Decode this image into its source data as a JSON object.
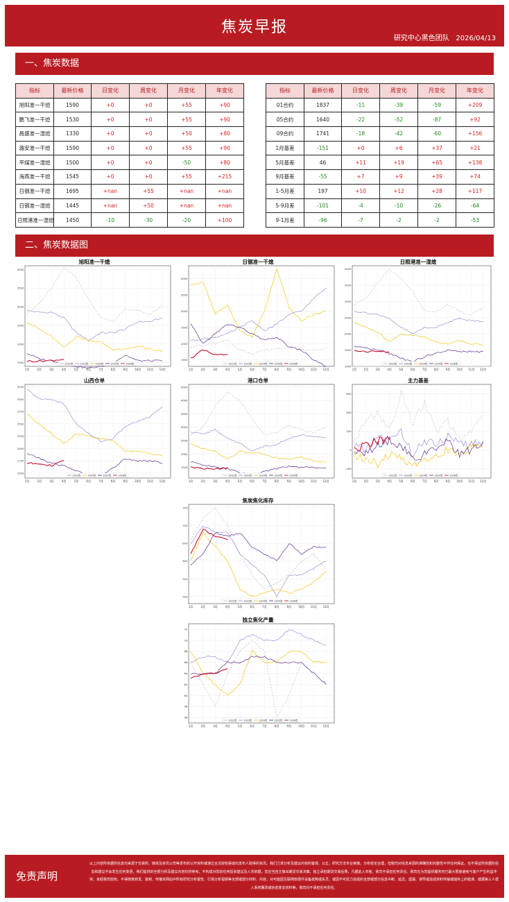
{
  "header": {
    "title": "焦炭早报",
    "team": "研究中心黑色团队",
    "date": "2026/04/13"
  },
  "section1": {
    "title": "一、焦炭数据"
  },
  "section2": {
    "title": "二、焦炭数据图"
  },
  "table_left": {
    "headers": [
      "指标",
      "最新价格",
      "日变化",
      "周变化",
      "月变化",
      "年变化"
    ],
    "rows": [
      [
        "旭阳准一干熄",
        "1590",
        "+0",
        "+0",
        "+55",
        "+90"
      ],
      [
        "鹏飞准一干熄",
        "1530",
        "+0",
        "+0",
        "+55",
        "+90"
      ],
      [
        "昌盛准一湿熄",
        "1330",
        "+0",
        "+0",
        "+50",
        "+80"
      ],
      [
        "潞安准一干熄",
        "1590",
        "+0",
        "+0",
        "+55",
        "+90"
      ],
      [
        "平煤准一湿熄",
        "1500",
        "+0",
        "+0",
        "-50",
        "+80"
      ],
      [
        "海燕准一干熄",
        "1545",
        "+0",
        "+0",
        "+55",
        "+215"
      ],
      [
        "日钢准一干熄",
        "1695",
        "+nan",
        "+55",
        "+nan",
        "+nan"
      ],
      [
        "日钢准一湿熄",
        "1445",
        "+nan",
        "+50",
        "+nan",
        "+nan"
      ],
      [
        "日照港准一湿熄",
        "1450",
        "-10",
        "-30",
        "-20",
        "+100"
      ]
    ]
  },
  "table_right": {
    "headers": [
      "指标",
      "最新价格",
      "日变化",
      "周变化",
      "月变化",
      "年变化"
    ],
    "rows": [
      [
        "01合约",
        "1837",
        "-11",
        "-39",
        "-59",
        "+209"
      ],
      [
        "05合约",
        "1640",
        "-22",
        "-52",
        "-87",
        "+92"
      ],
      [
        "09合约",
        "1741",
        "-18",
        "-42",
        "-60",
        "+156"
      ],
      [
        "1月基差",
        "-151",
        "+0",
        "+6",
        "+37",
        "+21"
      ],
      [
        "5月基差",
        "46",
        "+11",
        "+19",
        "+65",
        "+138"
      ],
      [
        "9月基差",
        "-55",
        "+7",
        "+9",
        "+39",
        "+74"
      ],
      [
        "1-5月差",
        "197",
        "+10",
        "+12",
        "+28",
        "+117"
      ],
      [
        "5-9月差",
        "-101",
        "-4",
        "-10",
        "-26",
        "-64"
      ],
      [
        "9-1月差",
        "-96",
        "-7",
        "-2",
        "-2",
        "-53"
      ]
    ]
  },
  "colors": {
    "brand": "#b81c22",
    "y2022": "#bdbdbd",
    "y2023": "#9b8fd6",
    "y2024": "#f5c518",
    "y2025": "#5b2d90",
    "y2026": "#c8102e"
  },
  "months": [
    "1月",
    "2月",
    "3月",
    "4月",
    "5月",
    "6月",
    "7月",
    "8月",
    "9月",
    "10月",
    "11月",
    "12月"
  ],
  "legend": [
    "2022年",
    "2023年",
    "2024年",
    "2025年",
    "2026年"
  ],
  "chart_data": [
    {
      "type": "line",
      "title": "旭阳准一干熄",
      "yticks": [
        1500,
        2000,
        2500,
        3000,
        3500,
        4000
      ],
      "ylim": [
        1400,
        4100
      ],
      "series": [
        {
          "name": "2022年",
          "values": [
            2800,
            3100,
            3500,
            4050,
            3800,
            3200,
            2700,
            2600,
            2950,
            2900,
            2800,
            3050
          ]
        },
        {
          "name": "2023年",
          "values": [
            2900,
            2850,
            2850,
            2700,
            2300,
            2100,
            2300,
            2300,
            2400,
            2600,
            2600,
            2700
          ]
        },
        {
          "name": "2024年",
          "values": [
            2600,
            2400,
            2200,
            1900,
            2200,
            2100,
            2050,
            1850,
            1850,
            1950,
            1850,
            1800
          ]
        },
        {
          "name": "2025年",
          "values": [
            1750,
            1600,
            1550,
            1500,
            1400,
            1350,
            1400,
            1500,
            1700,
            1550,
            1550,
            1550
          ]
        },
        {
          "name": "2026年",
          "values": [
            1540,
            1540,
            1560,
            1590
          ]
        }
      ]
    },
    {
      "type": "line",
      "title": "日钢准一干熄",
      "yticks": [
        1500,
        2000,
        2500,
        3000,
        3500,
        4000
      ],
      "ylim": [
        1300,
        4400
      ],
      "series": [
        {
          "name": "2022年",
          "values": [
            1900,
            1950,
            2000,
            2100,
            1800,
            1700,
            1800,
            1850,
            1900,
            1800,
            1800,
            1850
          ]
        },
        {
          "name": "2023年",
          "values": [
            2100,
            2150,
            2200,
            2300,
            2500,
            2700,
            2400,
            2600,
            2900,
            3000,
            3400,
            3700
          ]
        },
        {
          "name": "2024年",
          "values": [
            3800,
            3900,
            2900,
            3200,
            2400,
            2200,
            3000,
            4300,
            3100,
            2700,
            2900,
            3000
          ]
        },
        {
          "name": "2025年",
          "values": [
            2600,
            2000,
            2300,
            2600,
            2500,
            2300,
            2100,
            2200,
            1900,
            1800,
            1500,
            1300
          ]
        },
        {
          "name": "2026年",
          "values": [
            1550,
            1800,
            1650,
            1650
          ]
        }
      ]
    },
    {
      "type": "line",
      "title": "日照港准一湿熄",
      "yticks": [
        1000,
        1500,
        2000,
        2500,
        3000,
        3500,
        4000
      ],
      "ylim": [
        1000,
        4100
      ],
      "series": [
        {
          "name": "2022年",
          "values": [
            2900,
            3100,
            3600,
            4000,
            3700,
            3300,
            2700,
            2700,
            2900,
            2700,
            2600,
            2800
          ]
        },
        {
          "name": "2023年",
          "values": [
            2700,
            2650,
            2600,
            2450,
            2200,
            2000,
            2200,
            2200,
            2350,
            2500,
            2400,
            2400
          ]
        },
        {
          "name": "2024年",
          "values": [
            2350,
            2200,
            2050,
            1750,
            2000,
            1950,
            1900,
            1750,
            1700,
            1800,
            1700,
            1650
          ]
        },
        {
          "name": "2025年",
          "values": [
            1600,
            1550,
            1500,
            1400,
            1250,
            1150,
            1300,
            1400,
            1500,
            1450,
            1450,
            1450
          ]
        },
        {
          "name": "2026年",
          "values": [
            1480,
            1460,
            1460,
            1450
          ]
        }
      ]
    },
    {
      "type": "line",
      "title": "山西仓单",
      "yticks": [
        1500,
        1750,
        2000,
        2250,
        2500,
        2750,
        3000,
        3250
      ],
      "ylim": [
        1400,
        3300
      ],
      "series": [
        {
          "name": "2023年",
          "values": [
            3200,
            3000,
            3000,
            2900,
            2500,
            2300,
            2150,
            2200,
            2450,
            2550,
            2650,
            2850
          ]
        },
        {
          "name": "2024年",
          "values": [
            2700,
            2500,
            2300,
            2100,
            2300,
            2250,
            2200,
            2150,
            1950,
            1950,
            1900,
            1850
          ]
        },
        {
          "name": "2025年",
          "values": [
            1900,
            1800,
            1700,
            1650,
            1550,
            1450,
            1450,
            1600,
            1800,
            1750,
            1750,
            1700
          ]
        },
        {
          "name": "2026年",
          "values": [
            1700,
            1700,
            1650,
            1750
          ]
        }
      ]
    },
    {
      "type": "line",
      "title": "港口仓单",
      "yticks": [
        1000,
        1500,
        2000,
        2500,
        3000,
        3500,
        4000,
        4500
      ],
      "ylim": [
        1100,
        4600
      ],
      "series": [
        {
          "name": "2022年",
          "values": [
            2700,
            3000,
            3800,
            4300,
            4000,
            3300,
            2700,
            2800,
            3100,
            2900,
            2800,
            3000
          ]
        },
        {
          "name": "2023年",
          "values": [
            2800,
            2750,
            2900,
            2600,
            2400,
            2100,
            2300,
            2350,
            2600,
            2700,
            2650,
            2600
          ]
        },
        {
          "name": "2024年",
          "values": [
            2400,
            2200,
            2100,
            1800,
            2100,
            2050,
            2000,
            1850,
            1800,
            1900,
            1750,
            1700
          ]
        },
        {
          "name": "2025年",
          "values": [
            1700,
            1600,
            1500,
            1450,
            1300,
            1200,
            1350,
            1450,
            1550,
            1500,
            1500,
            1450
          ]
        },
        {
          "name": "2026年",
          "values": [
            1500,
            1450,
            1450,
            1480
          ]
        }
      ]
    },
    {
      "type": "line",
      "title": "主力基差",
      "yticks": [
        -200,
        0,
        200,
        400,
        600
      ],
      "ylim": [
        -300,
        700
      ],
      "series": [
        {
          "name": "2022年",
          "values": [
            100,
            300,
            400,
            200,
            600,
            300,
            500,
            200,
            300,
            100,
            200,
            400
          ]
        },
        {
          "name": "2023年",
          "values": [
            50,
            0,
            150,
            100,
            200,
            -50,
            100,
            50,
            150,
            100,
            50,
            100
          ]
        },
        {
          "name": "2024年",
          "values": [
            -50,
            -100,
            -150,
            -50,
            -100,
            -150,
            -100,
            -50,
            0,
            -50,
            50,
            0
          ]
        },
        {
          "name": "2025年",
          "values": [
            0,
            -50,
            50,
            100,
            50,
            -100,
            -50,
            0,
            100,
            -50,
            0,
            50
          ]
        },
        {
          "name": "2026年",
          "values": [
            0,
            50,
            100,
            100
          ]
        }
      ]
    },
    {
      "type": "line",
      "title": "焦炭焦化库存",
      "yticks": [
        500,
        550,
        600,
        650,
        700,
        750
      ],
      "ylim": [
        480,
        760
      ],
      "series": [
        {
          "name": "2022年",
          "values": [
            660,
            720,
            750,
            700,
            620,
            560,
            520,
            540,
            560,
            600,
            620,
            580
          ]
        },
        {
          "name": "2023年",
          "values": [
            650,
            700,
            680,
            680,
            620,
            590,
            560,
            500,
            560,
            560,
            580,
            600
          ]
        },
        {
          "name": "2024年",
          "values": [
            600,
            680,
            640,
            600,
            520,
            500,
            510,
            520,
            510,
            520,
            540,
            570
          ]
        },
        {
          "name": "2025年",
          "values": [
            590,
            620,
            680,
            670,
            680,
            640,
            620,
            600,
            650,
            620,
            640,
            640
          ]
        },
        {
          "name": "2026年",
          "values": [
            620,
            690,
            670,
            660
          ]
        }
      ]
    },
    {
      "type": "line",
      "title": "独立焦化产量",
      "yticks": [
        56,
        58,
        60,
        62,
        64,
        66,
        68,
        70,
        72
      ],
      "ylim": [
        55,
        73
      ],
      "series": [
        {
          "name": "2022年",
          "values": [
            66,
            62,
            58,
            64,
            68,
            70,
            68,
            56,
            60,
            66,
            64,
            62
          ]
        },
        {
          "name": "2023年",
          "values": [
            66,
            67,
            67,
            66,
            70,
            71,
            70,
            70,
            72,
            71,
            70,
            69
          ]
        },
        {
          "name": "2024年",
          "values": [
            68,
            64,
            62,
            60,
            62,
            68,
            66,
            66,
            68,
            68,
            66,
            66
          ]
        },
        {
          "name": "2025年",
          "values": [
            64,
            64,
            64,
            66,
            66,
            67,
            67,
            66,
            66,
            66,
            64,
            62
          ]
        },
        {
          "name": "2026年",
          "values": [
            63,
            64,
            64,
            65
          ]
        }
      ]
    }
  ],
  "footer": {
    "title": "免责声明",
    "text": "以上内容所依据的信息均来源于交易所、媒体及资讯公司等发布的公开资料或通过合法授权渠道向发布人取得的资讯。我们力求分析及建议内容的客观、公正，研究方法专业审慎，分析结论合理，但我司对信息来源的准确性和完整性不作任何保证，也不保证所依据的信息和建议不会发生任何变更。我们提供的全部分析及建议内容仅供参考，不构成对您的任何投资建议及入市依据，您应当自主做出期货交易决策，独立承担期货交易后果，凡据此入市者，我司不承担任何责任。我司在为您提供服务时已最大限度避免与客户产生利益冲突，未经我司授权，不得随意转发、复制、传播本网站中所有研究分析报告、行情分析视频等全部或部分材料、内容，对可能因互联网软硬件设备故障或失灵、或因不可抗力造成的全部或部分信息中断、延迟、遗漏、误导或造成资料传输或储存上的错误、或遭第三人侵入系统篡改或伪造变造资料等，我司均不承担任何责任。"
  }
}
